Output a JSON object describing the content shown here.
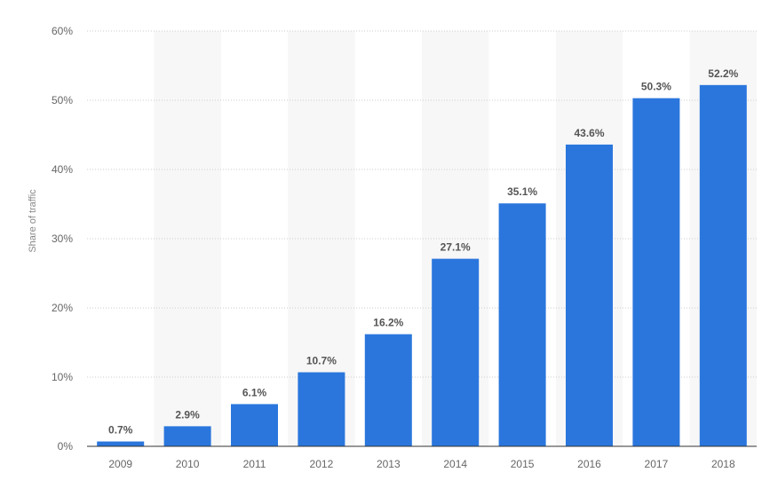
{
  "chart_data": {
    "type": "bar",
    "title": "",
    "xlabel": "",
    "ylabel": "Share of traffic",
    "categories": [
      "2009",
      "2010",
      "2011",
      "2012",
      "2013",
      "2014",
      "2015",
      "2016",
      "2017",
      "2018"
    ],
    "values": [
      0.7,
      2.9,
      6.1,
      10.7,
      16.2,
      27.1,
      35.1,
      43.6,
      50.3,
      52.2
    ],
    "data_labels": [
      "0.7%",
      "2.9%",
      "6.1%",
      "10.7%",
      "16.2%",
      "27.1%",
      "35.1%",
      "43.6%",
      "50.3%",
      "52.2%"
    ],
    "yticks": [
      0,
      10,
      20,
      30,
      40,
      50,
      60
    ],
    "ytick_labels": [
      "0%",
      "10%",
      "20%",
      "30%",
      "40%",
      "50%",
      "60%"
    ],
    "ylim": [
      0,
      60
    ],
    "grid": true,
    "legend": "none",
    "alternating_band_color": "#f7f7f7",
    "bar_color": "#2a76dd",
    "grid_color": "#cccccc",
    "axis_color": "#333333"
  }
}
